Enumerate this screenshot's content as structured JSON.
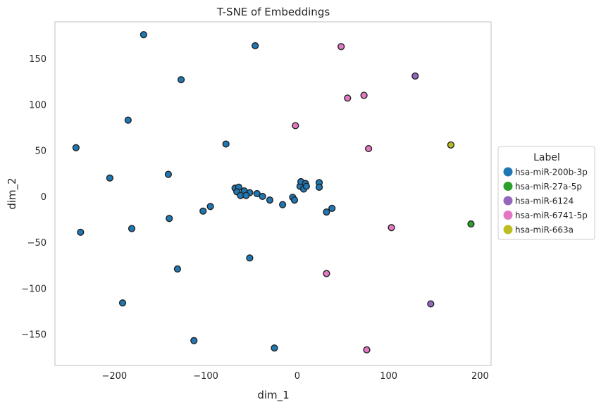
{
  "chart_data": {
    "type": "scatter",
    "title": "T-SNE of Embeddings",
    "xlabel": "dim_1",
    "ylabel": "dim_2",
    "xlim": [
      -265,
      212
    ],
    "ylim": [
      -184,
      190
    ],
    "x_ticks": [
      -200,
      -100,
      0,
      100,
      200
    ],
    "y_ticks": [
      -150,
      -100,
      -50,
      0,
      50,
      100,
      150
    ],
    "x_tick_labels": [
      "−200",
      "−100",
      "0",
      "100",
      "200"
    ],
    "y_tick_labels": [
      "−150",
      "−100",
      "−50",
      "0",
      "50",
      "100",
      "150"
    ],
    "grid": false,
    "legend_title": "Label",
    "legend_position": "center-right-outside",
    "series": [
      {
        "name": "hsa-miR-200b-3p",
        "color": "#1f77b4",
        "points": [
          [
            -168,
            176
          ],
          [
            -46,
            164
          ],
          [
            -127,
            127
          ],
          [
            -185,
            83
          ],
          [
            -78,
            57
          ],
          [
            -242,
            53
          ],
          [
            -141,
            24
          ],
          [
            -205,
            20
          ],
          [
            -68,
            9
          ],
          [
            -64,
            10
          ],
          [
            -66,
            5
          ],
          [
            -58,
            6
          ],
          [
            -62,
            1
          ],
          [
            -52,
            4
          ],
          [
            -56,
            1
          ],
          [
            -44,
            3
          ],
          [
            -38,
            0
          ],
          [
            -30,
            -4
          ],
          [
            -16,
            -9
          ],
          [
            -5,
            -1
          ],
          [
            -3,
            -4
          ],
          [
            3,
            11
          ],
          [
            4,
            16
          ],
          [
            7,
            8
          ],
          [
            9,
            14
          ],
          [
            10,
            11
          ],
          [
            24,
            15
          ],
          [
            24,
            10
          ],
          [
            32,
            -17
          ],
          [
            38,
            -13
          ],
          [
            -103,
            -16
          ],
          [
            -95,
            -11
          ],
          [
            -140,
            -24
          ],
          [
            -181,
            -35
          ],
          [
            -237,
            -39
          ],
          [
            -52,
            -67
          ],
          [
            -131,
            -79
          ],
          [
            -191,
            -116
          ],
          [
            -113,
            -157
          ],
          [
            -25,
            -165
          ]
        ]
      },
      {
        "name": "hsa-miR-27a-5p",
        "color": "#2ca02c",
        "points": [
          [
            190,
            -30
          ]
        ]
      },
      {
        "name": "hsa-miR-6124",
        "color": "#9467bd",
        "points": [
          [
            129,
            131
          ],
          [
            146,
            -117
          ]
        ]
      },
      {
        "name": "hsa-miR-6741-5p",
        "color": "#e377c2",
        "points": [
          [
            48,
            163
          ],
          [
            55,
            107
          ],
          [
            73,
            110
          ],
          [
            -2,
            77
          ],
          [
            78,
            52
          ],
          [
            103,
            -34
          ],
          [
            32,
            -84
          ],
          [
            76,
            -167
          ]
        ]
      },
      {
        "name": "hsa-miR-663a",
        "color": "#bcbd22",
        "points": [
          [
            168,
            56
          ]
        ]
      }
    ]
  }
}
